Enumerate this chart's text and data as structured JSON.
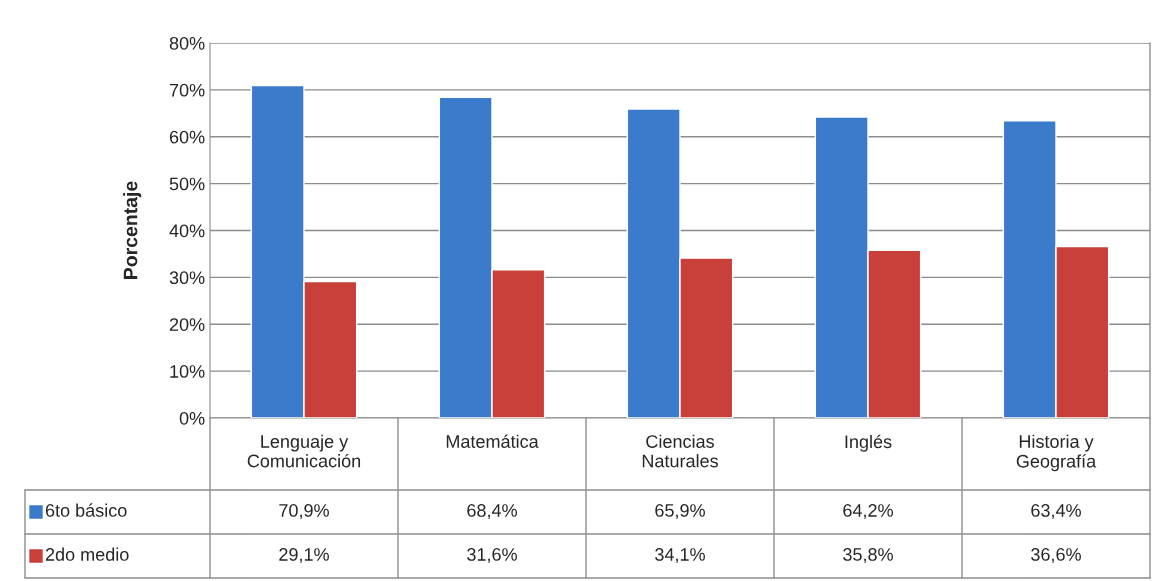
{
  "chart_data": {
    "type": "bar",
    "ylabel": "Porcentaje",
    "categories": [
      "Lenguaje y\nComunicación",
      "Matemática",
      "Ciencias\nNaturales",
      "Inglés",
      "Historia y\nGeografía"
    ],
    "series": [
      {
        "name": "6to básico",
        "color": "#3b7bcb",
        "values": [
          70.9,
          68.4,
          65.9,
          64.2,
          63.4
        ],
        "value_labels": [
          "70,9%",
          "68,4%",
          "65,9%",
          "64,2%",
          "63,4%"
        ]
      },
      {
        "name": "2do medio",
        "color": "#c9403a",
        "values": [
          29.1,
          31.6,
          34.1,
          35.8,
          36.6
        ],
        "value_labels": [
          "29,1%",
          "31,6%",
          "34,1%",
          "35,8%",
          "36,6%"
        ]
      }
    ],
    "ylim": [
      0,
      80
    ],
    "yticks": [
      {
        "value": 0,
        "label": "0%"
      },
      {
        "value": 10,
        "label": "10%"
      },
      {
        "value": 20,
        "label": "20%"
      },
      {
        "value": 30,
        "label": "30%"
      },
      {
        "value": 40,
        "label": "40%"
      },
      {
        "value": 50,
        "label": "50%"
      },
      {
        "value": 60,
        "label": "60%"
      },
      {
        "value": 70,
        "label": "70%"
      },
      {
        "value": 80,
        "label": "80%"
      }
    ],
    "grid": "y",
    "legend": "bottom"
  }
}
